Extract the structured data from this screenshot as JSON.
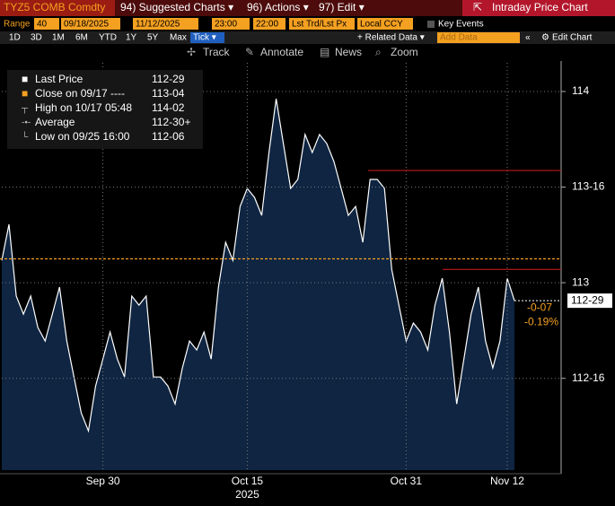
{
  "header": {
    "ticker": "TYZ5 COMB Comdty",
    "menus": [
      "94) Suggested Charts ▾",
      "96) Actions ▾",
      "97) Edit ▾"
    ],
    "title": "Intraday Price Chart"
  },
  "settings": {
    "range_label": "Range",
    "fields": [
      "40",
      "09/18/2025",
      "11/12/2025",
      "23:00",
      "22:00",
      "Lst Trd/Lst Px",
      "Local CCY"
    ],
    "key_events": "Key Events"
  },
  "range_buttons": [
    "1D",
    "3D",
    "1M",
    "6M",
    "YTD",
    "1Y",
    "5Y",
    "Max",
    "Tick ▾"
  ],
  "data_controls": {
    "related": "+ Related Data ▾",
    "add": "Add Data",
    "edit": "Edit Chart"
  },
  "toolbar": [
    "Track",
    "Annotate",
    "News",
    "Zoom"
  ],
  "legend": [
    {
      "name": "Last Price",
      "value": "112-29"
    },
    {
      "name": "Close on 09/17 ----",
      "value": "113-04"
    },
    {
      "name": "High on 10/17 05:48",
      "value": "114-02"
    },
    {
      "name": "Average",
      "value": "112-30+"
    },
    {
      "name": "Low on 09/25 16:00",
      "value": "112-06"
    }
  ],
  "chart_data": {
    "type": "area",
    "color": "#ffffff",
    "fill": "#0f2542",
    "categories": [
      null,
      null,
      null,
      null,
      null,
      null,
      null,
      null,
      null,
      null,
      null,
      null,
      null,
      null,
      "Sep 30",
      null,
      null,
      null,
      null,
      null,
      null,
      null,
      null,
      null,
      null,
      null,
      null,
      null,
      null,
      null,
      null,
      null,
      null,
      null,
      "Oct 15",
      null,
      null,
      null,
      null,
      null,
      null,
      null,
      null,
      null,
      null,
      null,
      null,
      null,
      null,
      null,
      null,
      null,
      null,
      null,
      null,
      null,
      "Oct 31",
      null,
      null,
      null,
      null,
      null,
      null,
      null,
      null,
      null,
      null,
      null,
      null,
      null,
      "Nov 12",
      null
    ],
    "values": [
      113.117,
      113.305,
      112.93,
      112.836,
      112.93,
      112.765,
      112.695,
      112.836,
      112.977,
      112.695,
      112.507,
      112.319,
      112.225,
      112.46,
      112.601,
      112.742,
      112.601,
      112.507,
      112.93,
      112.883,
      112.93,
      112.507,
      112.507,
      112.46,
      112.366,
      112.554,
      112.695,
      112.648,
      112.742,
      112.601,
      112.977,
      113.211,
      113.117,
      113.399,
      113.493,
      113.446,
      113.352,
      113.681,
      113.962,
      113.728,
      113.493,
      113.54,
      113.775,
      113.681,
      113.775,
      113.728,
      113.634,
      113.493,
      113.352,
      113.399,
      113.211,
      113.54,
      113.54,
      113.493,
      113.07,
      112.883,
      112.695,
      112.789,
      112.742,
      112.648,
      112.883,
      113.023,
      112.742,
      112.366,
      112.601,
      112.836,
      112.977,
      112.695,
      112.554,
      112.695,
      113.023,
      112.906
    ],
    "year_label": "2025",
    "ylim": [
      112.02,
      114.15
    ],
    "yticks": [
      {
        "value": 112.5,
        "label": "112-16"
      },
      113,
      {
        "value": 113.5,
        "label": "113-16"
      },
      114
    ],
    "grid": true,
    "close_line": {
      "value": 113.125,
      "color": "#f4a020"
    },
    "red_lines": [
      113.587,
      113.07
    ],
    "last_price": {
      "value": 112.906,
      "label": "112-29"
    },
    "change_labels": [
      "-0-07",
      "-0.19%"
    ]
  }
}
